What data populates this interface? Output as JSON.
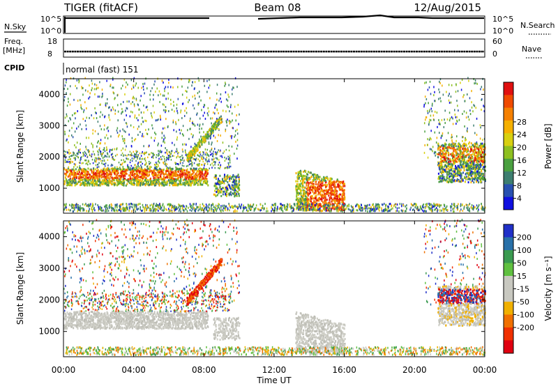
{
  "header": {
    "title": "TIGER (fitACF)",
    "beam": "Beam 08",
    "date": "12/Aug/2015"
  },
  "side_labels": {
    "nsky": "N.Sky",
    "nsearch": "N.Search",
    "freq_top": "Freq.",
    "freq_unit": "[MHz]",
    "nave": "Nave",
    "cpid": "CPID",
    "cpid_value": "normal (fast) 151"
  },
  "mini_axes": {
    "noise_left_ticks": [
      "10^5",
      "10^0"
    ],
    "noise_right_ticks": [
      "10^5",
      "10^0"
    ],
    "freq_left_ticks": [
      "18",
      "8"
    ],
    "freq_right_ticks": [
      "60",
      "0"
    ]
  },
  "chart_data": [
    {
      "type": "heatmap",
      "name": "power",
      "ylabel": "Slant Range [km]",
      "yticks": [
        "1000",
        "2000",
        "3000",
        "4000"
      ],
      "ylim": [
        200,
        4500
      ],
      "xlim": [
        0,
        24
      ],
      "colorbar": {
        "label": "Power [dB]",
        "ticks": [
          "4",
          "8",
          "12",
          "16",
          "20",
          "24",
          "28"
        ],
        "colors": [
          "#1010e0",
          "#2850b0",
          "#3d7e70",
          "#4aa040",
          "#8ec020",
          "#d8d010",
          "#f5b000",
          "#f58000",
          "#f04a00",
          "#e01010"
        ]
      }
    },
    {
      "type": "heatmap",
      "name": "velocity",
      "ylabel": "Slant Range [km]",
      "yticks": [
        "1000",
        "2000",
        "3000",
        "4000"
      ],
      "ylim": [
        200,
        4500
      ],
      "xlim": [
        0,
        24
      ],
      "xlabel": "Time UT",
      "xticks": [
        "00:00",
        "04:00",
        "08:00",
        "12:00",
        "16:00",
        "20:00",
        "00:00"
      ],
      "colorbar": {
        "label": "Velocity [m s⁻¹]",
        "ticks": [
          "200",
          "100",
          "50",
          "15",
          "-15",
          "-50",
          "-100",
          "-200"
        ],
        "colors": [
          "#2030c8",
          "#2870a8",
          "#3a9a50",
          "#60c040",
          "#c8c8c0",
          "#c8c8c0",
          "#f0b000",
          "#f07000",
          "#f03000",
          "#e00010"
        ]
      }
    }
  ]
}
